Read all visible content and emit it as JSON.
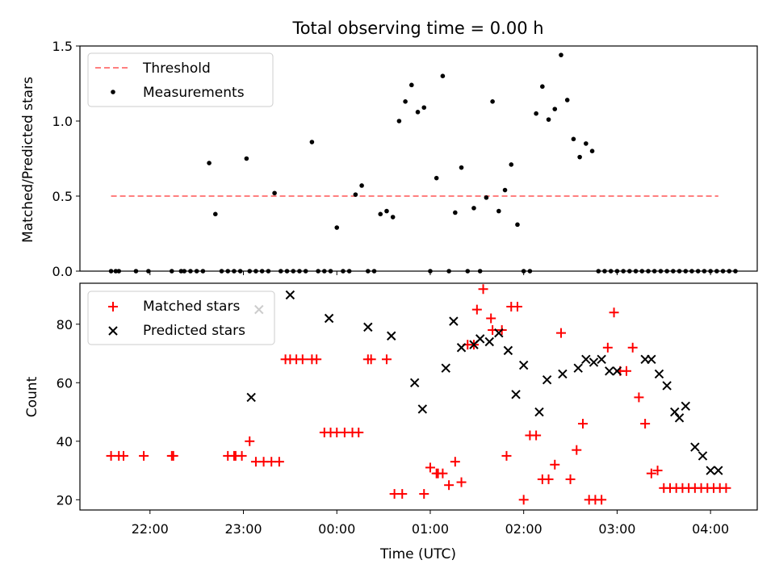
{
  "title": "Total observing time = 0.00 h",
  "chart_data": [
    {
      "type": "scatter",
      "title": "Total observing time = 0.00 h",
      "xlabel": "",
      "ylabel": "Matched/Predicted stars",
      "x_range": [
        "21:15",
        "04:30"
      ],
      "ylim": [
        0,
        1.5
      ],
      "yticks": [
        0.0,
        0.5,
        1.0,
        1.5
      ],
      "legend": "upper left",
      "threshold": {
        "name": "Threshold",
        "value": 0.5,
        "x_start": "21:35",
        "x_end": "04:05",
        "color": "#ff7f7f"
      },
      "series": [
        {
          "name": "Measurements",
          "color": "#000000",
          "x": [
            "21:35",
            "21:38",
            "21:40",
            "21:51",
            "21:59",
            "22:14",
            "22:20",
            "22:22",
            "22:26",
            "22:30",
            "22:34",
            "22:38",
            "22:42",
            "22:46",
            "22:50",
            "22:54",
            "22:58",
            "23:02",
            "23:04",
            "23:08",
            "23:12",
            "23:16",
            "23:20",
            "23:24",
            "23:28",
            "23:32",
            "23:36",
            "23:40",
            "23:44",
            "23:48",
            "23:52",
            "23:56",
            "00:00",
            "00:04",
            "00:08",
            "00:12",
            "00:16",
            "00:20",
            "00:24",
            "00:28",
            "00:32",
            "00:36",
            "00:40",
            "00:44",
            "00:48",
            "00:52",
            "00:56",
            "01:00",
            "01:04",
            "01:08",
            "01:12",
            "01:16",
            "01:20",
            "01:24",
            "01:28",
            "01:32",
            "01:36",
            "01:40",
            "01:44",
            "01:48",
            "01:52",
            "01:56",
            "02:00",
            "02:04",
            "02:08",
            "02:12",
            "02:16",
            "02:20",
            "02:24",
            "02:28",
            "02:32",
            "02:36",
            "02:40",
            "02:44",
            "02:48",
            "02:52",
            "02:56",
            "03:00",
            "03:04",
            "03:08",
            "03:12",
            "03:16",
            "03:20",
            "03:24",
            "03:28",
            "03:32",
            "03:36",
            "03:40",
            "03:44",
            "03:48",
            "03:52",
            "03:56",
            "04:00",
            "04:04",
            "04:08",
            "04:12",
            "04:16"
          ],
          "y": [
            0,
            0,
            0,
            0,
            0,
            0,
            0,
            0,
            0,
            0,
            0,
            0.72,
            0.38,
            0,
            0,
            0,
            0,
            0.75,
            0,
            0,
            0,
            0,
            0.52,
            0,
            0,
            0,
            0,
            0,
            0.86,
            0,
            0,
            0,
            0.29,
            0,
            0,
            0.51,
            0.57,
            0,
            0,
            0.38,
            0.4,
            0.36,
            1.0,
            1.13,
            1.24,
            1.06,
            1.09,
            0,
            0.62,
            1.3,
            0,
            0.39,
            0.69,
            0,
            0.42,
            0,
            0.49,
            1.13,
            0.4,
            0.54,
            0.71,
            0.31,
            0,
            0,
            1.05,
            1.23,
            1.01,
            1.08,
            1.44,
            1.14,
            0.88,
            0.76,
            0.85,
            0.8,
            0,
            0,
            0,
            0,
            0,
            0,
            0,
            0,
            0,
            0,
            0,
            0,
            0,
            0,
            0,
            0,
            0,
            0,
            0,
            0,
            0,
            0,
            0
          ]
        }
      ]
    },
    {
      "type": "scatter",
      "title": "",
      "xlabel": "Time (UTC)",
      "ylabel": "Count",
      "x_range": [
        "21:15",
        "04:30"
      ],
      "xticks": [
        "22:00",
        "23:00",
        "00:00",
        "01:00",
        "02:00",
        "03:00",
        "04:00"
      ],
      "ylim": [
        16.5,
        94
      ],
      "yticks": [
        20,
        40,
        60,
        80
      ],
      "legend": "upper left",
      "series": [
        {
          "name": "Matched stars",
          "marker": "+",
          "color": "#ff0000",
          "x": [
            "21:35",
            "21:40",
            "21:43",
            "21:56",
            "22:14",
            "22:15",
            "22:50",
            "22:54",
            "22:55",
            "22:59",
            "23:04",
            "23:08",
            "23:13",
            "23:18",
            "23:23",
            "23:27",
            "23:30",
            "23:34",
            "23:38",
            "23:44",
            "23:47",
            "23:52",
            "23:56",
            "00:00",
            "00:05",
            "00:10",
            "00:14",
            "00:20",
            "00:22",
            "00:32",
            "00:37",
            "00:42",
            "00:56",
            "01:00",
            "01:04",
            "01:05",
            "01:08",
            "01:12",
            "01:16",
            "01:20",
            "01:24",
            "01:28",
            "01:30",
            "01:34",
            "01:39",
            "01:40",
            "01:46",
            "01:49",
            "01:52",
            "01:56",
            "02:00",
            "02:04",
            "02:08",
            "02:12",
            "02:16",
            "02:20",
            "02:24",
            "02:30",
            "02:34",
            "02:38",
            "02:42",
            "02:46",
            "02:50",
            "02:54",
            "02:58",
            "03:02",
            "03:06",
            "03:10",
            "03:14",
            "03:18",
            "03:22",
            "03:26",
            "03:30",
            "03:34",
            "03:38",
            "03:42",
            "03:46",
            "03:50",
            "03:54",
            "03:58",
            "04:02",
            "04:06",
            "04:10"
          ],
          "y": [
            35,
            35,
            35,
            35,
            35,
            35,
            35,
            35,
            35,
            35,
            40,
            33,
            33,
            33,
            33,
            68,
            68,
            68,
            68,
            68,
            68,
            43,
            43,
            43,
            43,
            43,
            43,
            68,
            68,
            68,
            22,
            22,
            22,
            31,
            29,
            29,
            29,
            25,
            33,
            26,
            73,
            73,
            85,
            92,
            82,
            78,
            78,
            35,
            86,
            86,
            20,
            42,
            42,
            27,
            27,
            32,
            77,
            27,
            37,
            46,
            20,
            20,
            20,
            72,
            84,
            64,
            64,
            72,
            55,
            46,
            29,
            30,
            24,
            24,
            24,
            24,
            24,
            24,
            24,
            24,
            24,
            24,
            24
          ]
        },
        {
          "name": "Predicted stars",
          "marker": "x",
          "color": "#000000",
          "x": [
            "23:05",
            "23:10",
            "23:30",
            "23:55",
            "00:20",
            "00:35",
            "00:50",
            "00:55",
            "01:10",
            "01:15",
            "01:20",
            "01:28",
            "01:32",
            "01:38",
            "01:44",
            "01:50",
            "01:55",
            "02:00",
            "02:10",
            "02:15",
            "02:25",
            "02:35",
            "02:40",
            "02:45",
            "02:50",
            "02:55",
            "03:00",
            "03:18",
            "03:22",
            "03:27",
            "03:32",
            "03:37",
            "03:40",
            "03:44",
            "03:50",
            "03:55",
            "04:00",
            "04:05"
          ],
          "y": [
            55,
            85,
            90,
            82,
            79,
            76,
            60,
            51,
            65,
            81,
            72,
            73,
            75,
            74,
            77,
            71,
            56,
            66,
            50,
            61,
            63,
            65,
            68,
            67,
            68,
            64,
            64,
            68,
            68,
            63,
            59,
            50,
            48,
            52,
            38,
            35,
            30,
            30
          ]
        }
      ]
    }
  ]
}
